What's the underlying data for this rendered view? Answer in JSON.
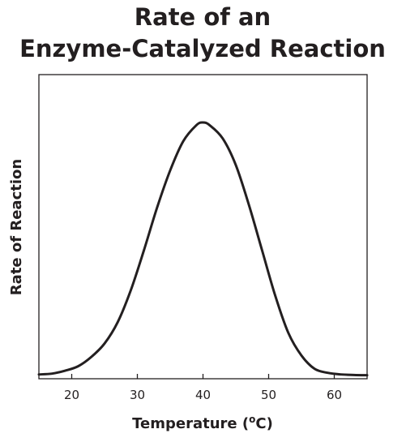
{
  "chart_data": {
    "type": "line",
    "title_lines": [
      "Rate of an",
      "Enzyme-Catalyzed Reaction"
    ],
    "xlabel": "Temperature (",
    "xlabel_sup": "o",
    "xlabel_suffix": "C)",
    "ylabel": "Rate of Reaction",
    "xlim": [
      15,
      65
    ],
    "ylim": [
      0,
      1
    ],
    "xticks": [
      20,
      30,
      40,
      50,
      60
    ],
    "grid": false,
    "series": [
      {
        "color": "#231f20",
        "x": [
          15,
          17,
          19,
          21,
          23,
          25,
          27,
          29,
          31,
          33,
          35,
          37,
          39,
          40,
          41,
          43,
          45,
          47,
          49,
          51,
          53,
          55,
          57,
          59,
          61,
          63,
          65
        ],
        "y": [
          0.004,
          0.007,
          0.018,
          0.035,
          0.07,
          0.12,
          0.2,
          0.32,
          0.47,
          0.63,
          0.77,
          0.88,
          0.94,
          0.95,
          0.94,
          0.89,
          0.79,
          0.64,
          0.47,
          0.3,
          0.16,
          0.075,
          0.025,
          0.01,
          0.004,
          0.002,
          0.001
        ]
      }
    ]
  }
}
